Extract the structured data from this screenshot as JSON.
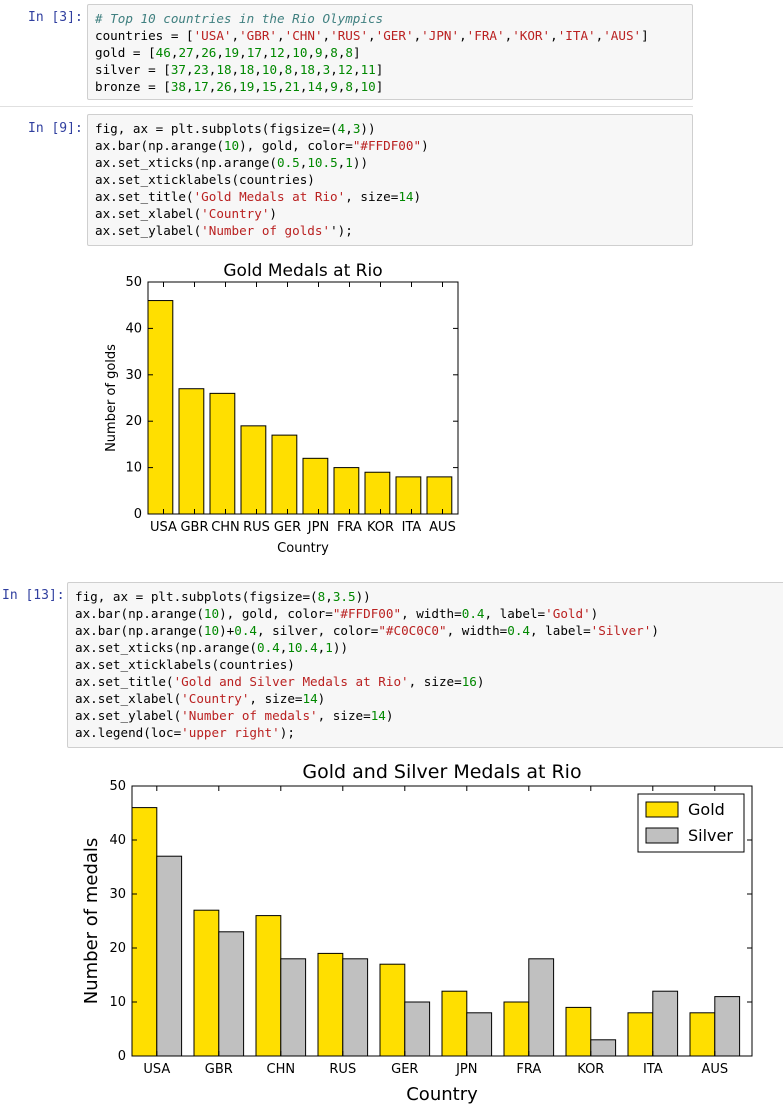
{
  "cells": [
    {
      "prompt": "In [3]:",
      "lines": [
        [
          [
            "cm",
            "# Top 10 countries in the Rio Olympics"
          ]
        ],
        [
          [
            "",
            "countries = ["
          ],
          [
            "st",
            "'USA'"
          ],
          [
            "",
            ","
          ],
          [
            "st",
            "'GBR'"
          ],
          [
            "",
            ","
          ],
          [
            "st",
            "'CHN'"
          ],
          [
            "",
            ","
          ],
          [
            "st",
            "'RUS'"
          ],
          [
            "",
            ","
          ],
          [
            "st",
            "'GER'"
          ],
          [
            "",
            ","
          ],
          [
            "st",
            "'JPN'"
          ],
          [
            "",
            ","
          ],
          [
            "st",
            "'FRA'"
          ],
          [
            "",
            ","
          ],
          [
            "st",
            "'KOR'"
          ],
          [
            "",
            ","
          ],
          [
            "st",
            "'ITA'"
          ],
          [
            "",
            ","
          ],
          [
            "st",
            "'AUS'"
          ],
          [
            "",
            "]"
          ]
        ],
        [
          [
            "",
            "gold = ["
          ],
          [
            "nm",
            "46"
          ],
          [
            "",
            ","
          ],
          [
            "nm",
            "27"
          ],
          [
            "",
            ","
          ],
          [
            "nm",
            "26"
          ],
          [
            "",
            ","
          ],
          [
            "nm",
            "19"
          ],
          [
            "",
            ","
          ],
          [
            "nm",
            "17"
          ],
          [
            "",
            ","
          ],
          [
            "nm",
            "12"
          ],
          [
            "",
            ","
          ],
          [
            "nm",
            "10"
          ],
          [
            "",
            ","
          ],
          [
            "nm",
            "9"
          ],
          [
            "",
            ","
          ],
          [
            "nm",
            "8"
          ],
          [
            "",
            ","
          ],
          [
            "nm",
            "8"
          ],
          [
            "",
            "]"
          ]
        ],
        [
          [
            "",
            "silver = ["
          ],
          [
            "nm",
            "37"
          ],
          [
            "",
            ","
          ],
          [
            "nm",
            "23"
          ],
          [
            "",
            ","
          ],
          [
            "nm",
            "18"
          ],
          [
            "",
            ","
          ],
          [
            "nm",
            "18"
          ],
          [
            "",
            ","
          ],
          [
            "nm",
            "10"
          ],
          [
            "",
            ","
          ],
          [
            "nm",
            "8"
          ],
          [
            "",
            ","
          ],
          [
            "nm",
            "18"
          ],
          [
            "",
            ","
          ],
          [
            "nm",
            "3"
          ],
          [
            "",
            ","
          ],
          [
            "nm",
            "12"
          ],
          [
            "",
            ","
          ],
          [
            "nm",
            "11"
          ],
          [
            "",
            "]"
          ]
        ],
        [
          [
            "",
            "bronze = ["
          ],
          [
            "nm",
            "38"
          ],
          [
            "",
            ","
          ],
          [
            "nm",
            "17"
          ],
          [
            "",
            ","
          ],
          [
            "nm",
            "26"
          ],
          [
            "",
            ","
          ],
          [
            "nm",
            "19"
          ],
          [
            "",
            ","
          ],
          [
            "nm",
            "15"
          ],
          [
            "",
            ","
          ],
          [
            "nm",
            "21"
          ],
          [
            "",
            ","
          ],
          [
            "nm",
            "14"
          ],
          [
            "",
            ","
          ],
          [
            "nm",
            "9"
          ],
          [
            "",
            ","
          ],
          [
            "nm",
            "8"
          ],
          [
            "",
            ","
          ],
          [
            "nm",
            "10"
          ],
          [
            "",
            "]"
          ]
        ]
      ]
    },
    {
      "prompt": "In [9]:",
      "lines": [
        [
          [
            "",
            "fig, ax = plt.subplots(figsize=("
          ],
          [
            "nm",
            "4"
          ],
          [
            "",
            ","
          ],
          [
            "nm",
            "3"
          ],
          [
            "",
            "))"
          ]
        ],
        [
          [
            "",
            "ax.bar(np.arange("
          ],
          [
            "nm",
            "10"
          ],
          [
            "",
            "), gold, color="
          ],
          [
            "st",
            "\"#FFDF00\""
          ],
          [
            "",
            ")"
          ]
        ],
        [
          [
            "",
            "ax.set_xticks(np.arange("
          ],
          [
            "nm",
            "0.5"
          ],
          [
            "",
            ","
          ],
          [
            "nm",
            "10.5"
          ],
          [
            "",
            ","
          ],
          [
            "nm",
            "1"
          ],
          [
            "",
            "))"
          ]
        ],
        [
          [
            "",
            "ax.set_xticklabels(countries)"
          ]
        ],
        [
          [
            "",
            "ax.set_title("
          ],
          [
            "st",
            "'Gold Medals at Rio'"
          ],
          [
            "",
            ", size="
          ],
          [
            "nm",
            "14"
          ],
          [
            "",
            ")"
          ]
        ],
        [
          [
            "",
            "ax.set_xlabel("
          ],
          [
            "st",
            "'Country'"
          ],
          [
            "",
            ")"
          ]
        ],
        [
          [
            "",
            "ax.set_ylabel("
          ],
          [
            "st",
            "'Number of golds'"
          ],
          [
            "",
            "');"
          ]
        ]
      ]
    },
    {
      "prompt": "In [13]:",
      "lines": [
        [
          [
            "",
            "fig, ax = plt.subplots(figsize=("
          ],
          [
            "nm",
            "8"
          ],
          [
            "",
            ","
          ],
          [
            "nm",
            "3.5"
          ],
          [
            "",
            "))"
          ]
        ],
        [
          [
            "",
            "ax.bar(np.arange("
          ],
          [
            "nm",
            "10"
          ],
          [
            "",
            "), gold, color="
          ],
          [
            "st",
            "\"#FFDF00\""
          ],
          [
            "",
            ", width="
          ],
          [
            "nm",
            "0.4"
          ],
          [
            "",
            ", label="
          ],
          [
            "st",
            "'Gold'"
          ],
          [
            "",
            ")"
          ]
        ],
        [
          [
            "",
            "ax.bar(np.arange("
          ],
          [
            "nm",
            "10"
          ],
          [
            "",
            ")+"
          ],
          [
            "nm",
            "0.4"
          ],
          [
            "",
            ", silver, color="
          ],
          [
            "st",
            "\"#C0C0C0\""
          ],
          [
            "",
            ", width="
          ],
          [
            "nm",
            "0.4"
          ],
          [
            "",
            ", label="
          ],
          [
            "st",
            "'Silver'"
          ],
          [
            "",
            ")"
          ]
        ],
        [
          [
            "",
            "ax.set_xticks(np.arange("
          ],
          [
            "nm",
            "0.4"
          ],
          [
            "",
            ","
          ],
          [
            "nm",
            "10.4"
          ],
          [
            "",
            ","
          ],
          [
            "nm",
            "1"
          ],
          [
            "",
            "))"
          ]
        ],
        [
          [
            "",
            "ax.set_xticklabels(countries)"
          ]
        ],
        [
          [
            "",
            "ax.set_title("
          ],
          [
            "st",
            "'Gold and Silver Medals at Rio'"
          ],
          [
            "",
            ", size="
          ],
          [
            "nm",
            "16"
          ],
          [
            "",
            ")"
          ]
        ],
        [
          [
            "",
            "ax.set_xlabel("
          ],
          [
            "st",
            "'Country'"
          ],
          [
            "",
            ", size="
          ],
          [
            "nm",
            "14"
          ],
          [
            "",
            ")"
          ]
        ],
        [
          [
            "",
            "ax.set_ylabel("
          ],
          [
            "st",
            "'Number of medals'"
          ],
          [
            "",
            ", size="
          ],
          [
            "nm",
            "14"
          ],
          [
            "",
            ")"
          ]
        ],
        [
          [
            "",
            "ax.legend(loc="
          ],
          [
            "st",
            "'upper right'"
          ],
          [
            "",
            ");"
          ]
        ]
      ]
    }
  ],
  "colors": {
    "gold": "#FFDF00",
    "silver": "#C0C0C0"
  },
  "chart_data": [
    {
      "type": "bar",
      "title": "Gold Medals at Rio",
      "xlabel": "Country",
      "ylabel": "Number of golds",
      "categories": [
        "USA",
        "GBR",
        "CHN",
        "RUS",
        "GER",
        "JPN",
        "FRA",
        "KOR",
        "ITA",
        "AUS"
      ],
      "values": [
        46,
        27,
        26,
        19,
        17,
        12,
        10,
        9,
        8,
        8
      ],
      "ylim": [
        0,
        50
      ],
      "yticks": [
        0,
        10,
        20,
        30,
        40,
        50
      ],
      "grid": false
    },
    {
      "type": "bar",
      "title": "Gold and Silver Medals at Rio",
      "xlabel": "Country",
      "ylabel": "Number of medals",
      "categories": [
        "USA",
        "GBR",
        "CHN",
        "RUS",
        "GER",
        "JPN",
        "FRA",
        "KOR",
        "ITA",
        "AUS"
      ],
      "series": [
        {
          "name": "Gold",
          "values": [
            46,
            27,
            26,
            19,
            17,
            12,
            10,
            9,
            8,
            8
          ]
        },
        {
          "name": "Silver",
          "values": [
            37,
            23,
            18,
            18,
            10,
            8,
            18,
            3,
            12,
            11
          ]
        }
      ],
      "ylim": [
        0,
        50
      ],
      "yticks": [
        0,
        10,
        20,
        30,
        40,
        50
      ],
      "legend": "upper right",
      "grid": false
    }
  ]
}
